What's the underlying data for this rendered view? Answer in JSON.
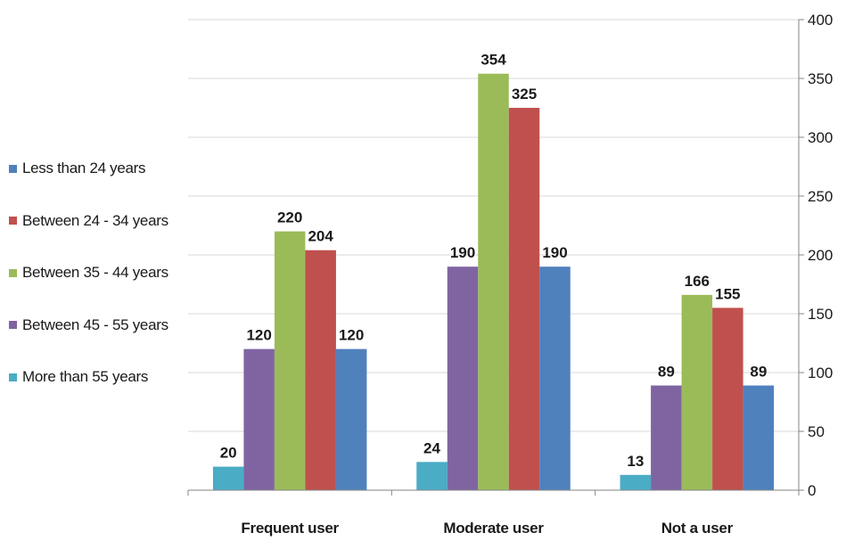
{
  "chart_data": {
    "type": "bar",
    "categories": [
      "Frequent user",
      "Moderate user",
      "Not a user"
    ],
    "series": [
      {
        "name": "More than 55 years",
        "color": "#4bacc6",
        "values": [
          20,
          24,
          13
        ]
      },
      {
        "name": "Between 45 - 55 years",
        "color": "#8064a2",
        "values": [
          120,
          190,
          89
        ]
      },
      {
        "name": "Between 35 - 44 years",
        "color": "#9bbb59",
        "values": [
          220,
          354,
          166
        ]
      },
      {
        "name": "Between 24 - 34 years",
        "color": "#c0504d",
        "values": [
          204,
          325,
          155
        ]
      },
      {
        "name": "Less than 24 years",
        "color": "#4f81bd",
        "values": [
          120,
          190,
          89
        ]
      }
    ],
    "legend_order": [
      "Less than 24 years",
      "Between 24 - 34 years",
      "Between 35 - 44 years",
      "Between 45 - 55 years",
      "More than 55 years"
    ],
    "y_ticks": [
      "0",
      "50",
      "100",
      "150",
      "200",
      "250",
      "300",
      "350",
      "400"
    ],
    "ylim": [
      0,
      400
    ],
    "y_axis_side": "right",
    "grid": true,
    "data_labels": true,
    "legend_position": "left"
  }
}
